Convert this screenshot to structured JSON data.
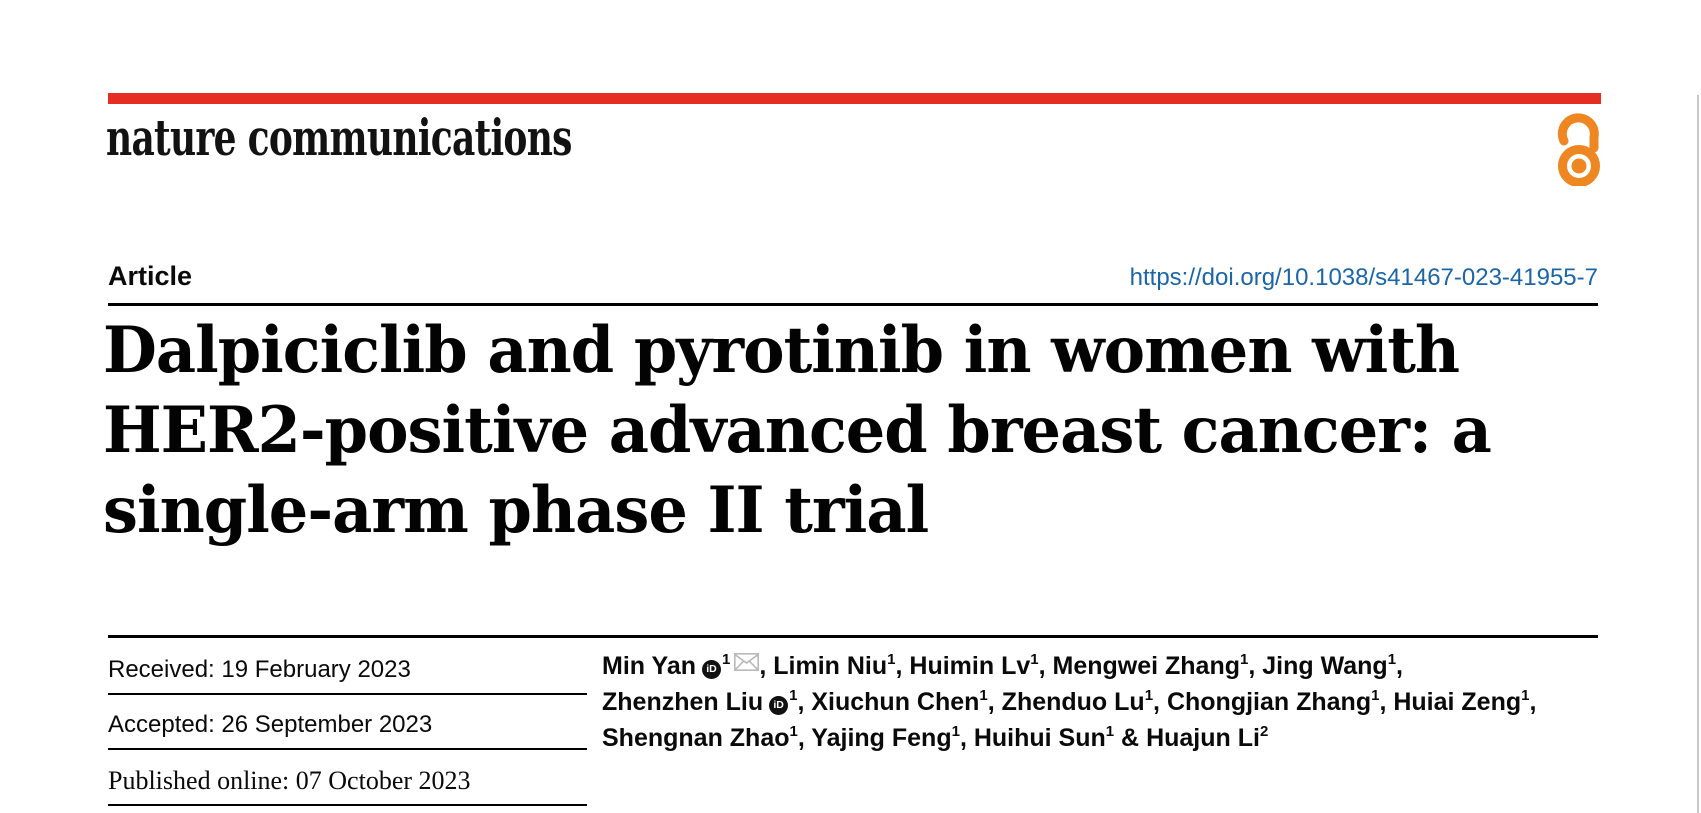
{
  "journal": {
    "name": "nature communications"
  },
  "masthead": {
    "bar_color": "#e52d24",
    "open_access_color": "#ee8722"
  },
  "article": {
    "label": "Article",
    "doi": "https://doi.org/10.1038/s41467-023-41955-7",
    "doi_color": "#1b65a8",
    "title_lines": [
      "Dalpiciclib and pyrotinib in women with",
      "HER2-positive advanced breast cancer: a",
      "single-arm phase II trial"
    ]
  },
  "dates": [
    {
      "text": "Received: 19 February 2023"
    },
    {
      "text": "Accepted: 26 September 2023"
    },
    {
      "text": "Published online: 07 October 2023"
    }
  ],
  "icons": {
    "orcid_label": "iD",
    "orcid": "orcid-icon",
    "email": "email-icon",
    "open_access": "open-access-icon"
  },
  "authors": {
    "lines": [
      [
        {
          "name": "Min Yan",
          "orcid": true,
          "sup": "1",
          "email": true,
          "sep": ", "
        },
        {
          "name": "Limin Niu",
          "sup": "1",
          "sep": ", "
        },
        {
          "name": "Huimin Lv",
          "sup": "1",
          "sep": ", "
        },
        {
          "name": "Mengwei Zhang",
          "sup": "1",
          "sep": ", "
        },
        {
          "name": "Jing Wang",
          "sup": "1",
          "sep": ","
        }
      ],
      [
        {
          "name": "Zhenzhen Liu",
          "orcid": true,
          "sup": "1",
          "sep": ", "
        },
        {
          "name": "Xiuchun Chen",
          "sup": "1",
          "sep": ", "
        },
        {
          "name": "Zhenduo Lu",
          "sup": "1",
          "sep": ", "
        },
        {
          "name": "Chongjian Zhang",
          "sup": "1",
          "sep": ", "
        },
        {
          "name": "Huiai Zeng",
          "sup": "1",
          "sep": ","
        }
      ],
      [
        {
          "name": "Shengnan Zhao",
          "sup": "1",
          "sep": ", "
        },
        {
          "name": "Yajing Feng",
          "sup": "1",
          "sep": ", "
        },
        {
          "name": "Huihui Sun",
          "sup": "1",
          "sep": " & "
        },
        {
          "name": "Huajun Li",
          "sup": "2",
          "sep": ""
        }
      ]
    ]
  }
}
